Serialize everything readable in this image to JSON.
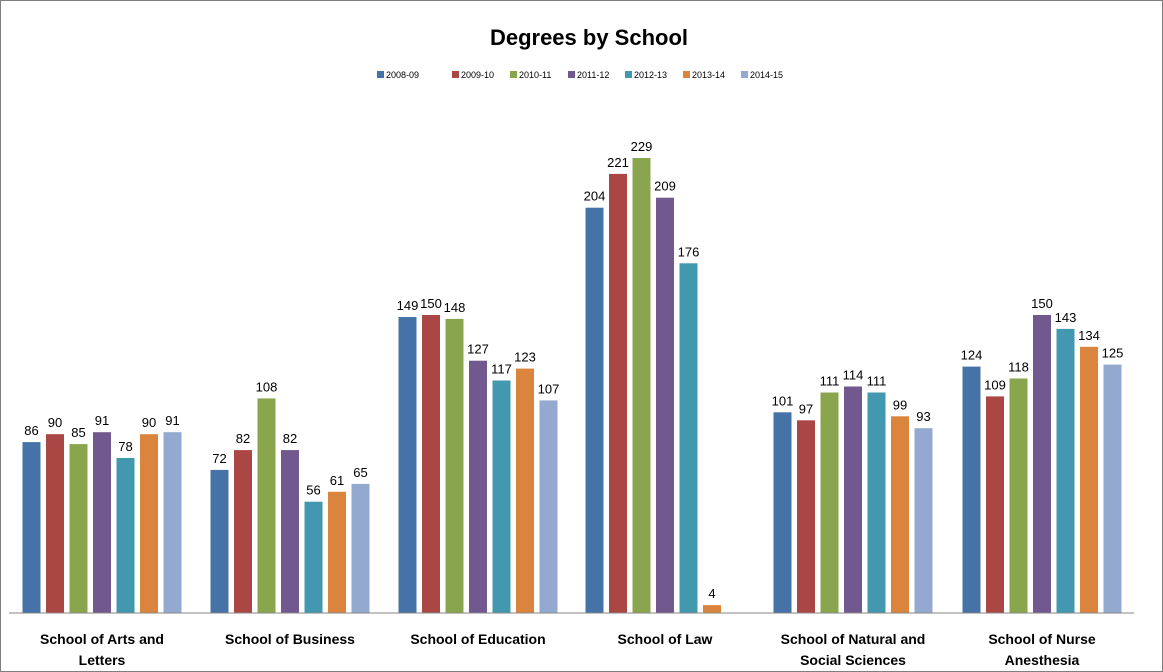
{
  "chart_data": {
    "type": "bar",
    "title": "Degrees by School",
    "xlabel": "",
    "ylabel": "",
    "ylim": [
      0,
      250
    ],
    "grid": false,
    "legend_position": "top",
    "categories": [
      [
        "School of Arts and",
        "Letters"
      ],
      [
        "School of Business"
      ],
      [
        "School of Education"
      ],
      [
        "School of Law"
      ],
      [
        "School of Natural and",
        "Social Sciences"
      ],
      [
        "School of Nurse",
        "Anesthesia"
      ]
    ],
    "series": [
      {
        "name": "2008-09",
        "color": "#4572A7",
        "values": [
          86,
          72,
          149,
          204,
          101,
          124
        ]
      },
      {
        "name": "2009-10",
        "color": "#AA4643",
        "values": [
          90,
          82,
          150,
          221,
          97,
          109
        ]
      },
      {
        "name": "2010-11",
        "color": "#89A54E",
        "values": [
          85,
          108,
          148,
          229,
          111,
          118
        ]
      },
      {
        "name": "2011-12",
        "color": "#71588F",
        "values": [
          91,
          82,
          127,
          209,
          114,
          150
        ]
      },
      {
        "name": "2012-13",
        "color": "#4198AF",
        "values": [
          78,
          56,
          117,
          176,
          111,
          143
        ]
      },
      {
        "name": "2013-14",
        "color": "#DB843D",
        "values": [
          90,
          61,
          123,
          4,
          99,
          134
        ]
      },
      {
        "name": "2014-15",
        "color": "#93A9CF",
        "values": [
          91,
          65,
          107,
          null,
          93,
          125
        ]
      }
    ]
  }
}
